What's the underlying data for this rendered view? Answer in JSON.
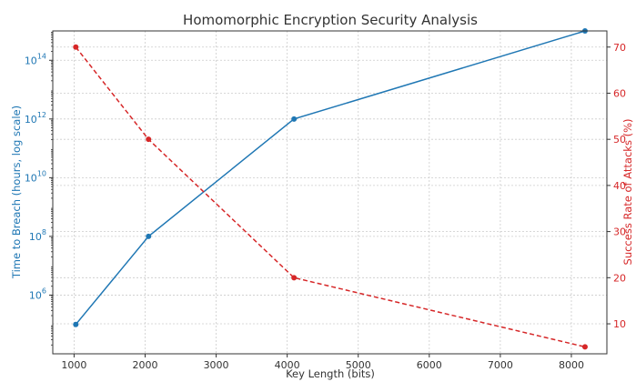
{
  "chart_data": {
    "type": "line",
    "title": "Homomorphic Encryption Security Analysis",
    "xlabel": "Key Length (bits)",
    "x": [
      1024,
      2048,
      4096,
      8192
    ],
    "xlim": [
      700,
      8500
    ],
    "xticks": [
      1000,
      2000,
      3000,
      4000,
      5000,
      6000,
      7000,
      8000
    ],
    "grid": true,
    "y_left": {
      "label": "Time to Breach (hours, log scale)",
      "scale": "log",
      "ylim": [
        10000,
        1000000000000000.0
      ],
      "ticks": [
        {
          "value": 1000000.0,
          "base": "10",
          "exp": "6"
        },
        {
          "value": 100000000.0,
          "base": "10",
          "exp": "8"
        },
        {
          "value": 10000000000.0,
          "base": "10",
          "exp": "10"
        },
        {
          "value": 1000000000000.0,
          "base": "10",
          "exp": "12"
        },
        {
          "value": 100000000000000.0,
          "base": "10",
          "exp": "14"
        }
      ],
      "color": "#1f77b4"
    },
    "y_right": {
      "label": "Success Rate of Attacks (%)",
      "scale": "linear",
      "ylim": [
        3.5,
        73.5
      ],
      "ticks": [
        10,
        20,
        30,
        40,
        50,
        60,
        70
      ],
      "color": "#d62728"
    },
    "series": [
      {
        "axis": "left",
        "color": "#1f77b4",
        "style": "solid",
        "marker": "circle",
        "values": [
          100000,
          100000000,
          1000000000000,
          1000000000000000
        ]
      },
      {
        "axis": "right",
        "color": "#d62728",
        "style": "dashed",
        "marker": "circle",
        "values": [
          70,
          50,
          20,
          5
        ]
      }
    ]
  }
}
